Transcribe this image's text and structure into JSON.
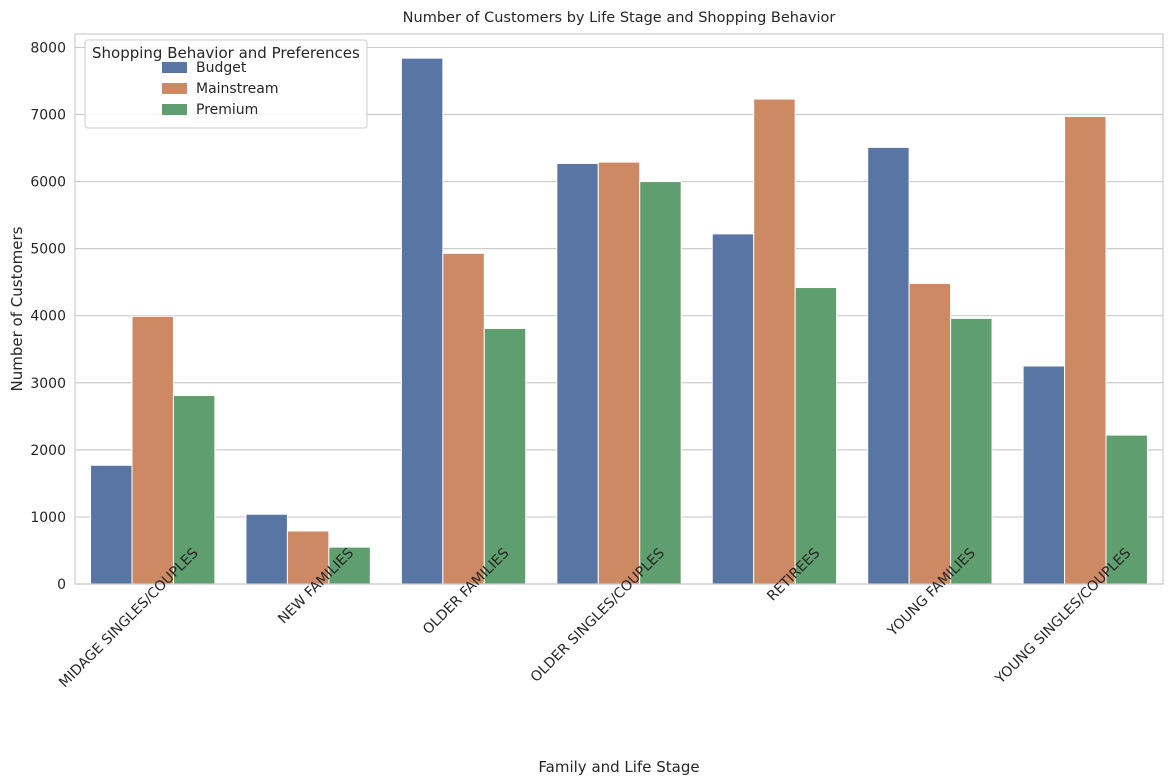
{
  "chart_data": {
    "type": "bar",
    "title": "Number of Customers by Life Stage and Shopping Behavior",
    "xlabel": "Family and Life Stage",
    "ylabel": "Number of Customers",
    "ylim": [
      0,
      8200
    ],
    "yticks": [
      0,
      1000,
      2000,
      3000,
      4000,
      5000,
      6000,
      7000,
      8000
    ],
    "grid": "horizontal",
    "legend": {
      "title": "Shopping Behavior and Preferences",
      "placement": "top-left"
    },
    "categories": [
      "MIDAGE SINGLES/COUPLES",
      "NEW FAMILIES",
      "OLDER FAMILIES",
      "OLDER SINGLES/COUPLES",
      "RETIREES",
      "YOUNG FAMILIES",
      "YOUNG SINGLES/COUPLES"
    ],
    "series": [
      {
        "name": "Budget",
        "color": "#5875a4",
        "values": [
          1770,
          1040,
          7840,
          6270,
          5220,
          6510,
          3250
        ]
      },
      {
        "name": "Mainstream",
        "color": "#cc8963",
        "values": [
          3990,
          790,
          4930,
          6290,
          7230,
          4480,
          6970
        ]
      },
      {
        "name": "Premium",
        "color": "#5f9e6e",
        "values": [
          2810,
          550,
          3810,
          6000,
          4420,
          3960,
          2220
        ]
      }
    ]
  }
}
